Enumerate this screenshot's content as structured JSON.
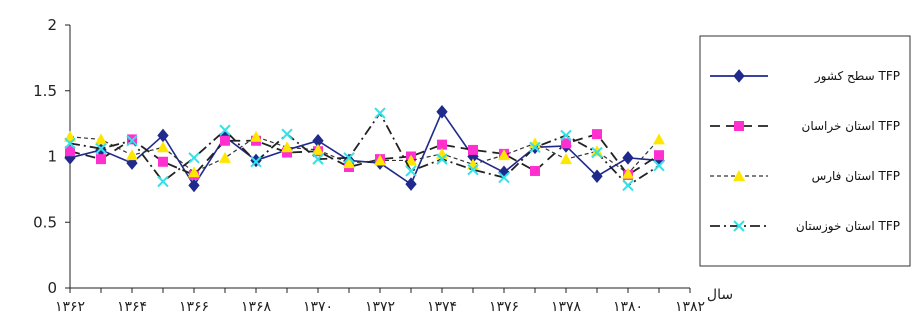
{
  "chart_data": {
    "type": "line",
    "title": "",
    "xlabel": "سال",
    "ylabel": "",
    "ylim": [
      0,
      2
    ],
    "yticks": [
      "0",
      "0.5",
      "1",
      "1.5",
      "2"
    ],
    "x": [
      "۱۳۶۲",
      "۱۳۶۳",
      "۱۳۶۴",
      "۱۳۶۵",
      "۱۳۶۶",
      "۱۳۶۷",
      "۱۳۶۸",
      "۱۳۶۹",
      "۱۳۷۰",
      "۱۳۷۱",
      "۱۳۷۲",
      "۱۳۷۳",
      "۱۳۷۴",
      "۱۳۷۵",
      "۱۳۷۶",
      "۱۳۷۷",
      "۱۳۷۸",
      "۱۳۷۹",
      "۱۳۸۰",
      "۱۳۸۱",
      "۱۳۸۲"
    ],
    "xtick_labels": [
      "۱۳۶۲",
      "۱۳۶۴",
      "۱۳۶۶",
      "۱۳۶۸",
      "۱۳۷۰",
      "۱۳۷۲",
      "۱۳۷۴",
      "۱۳۷۶",
      "۱۳۷۸",
      "۱۳۸۰",
      "۱۳۸۲"
    ],
    "grid": false,
    "legend": "right",
    "series": [
      {
        "name": "سطح کشور TFP",
        "color": "#1f2a8c",
        "dash": "solid",
        "marker": "diamond",
        "values": [
          0.99,
          1.05,
          0.95,
          1.16,
          0.78,
          1.15,
          0.97,
          1.05,
          1.12,
          0.97,
          0.95,
          0.79,
          1.34,
          1.0,
          0.88,
          1.07,
          1.08,
          0.85,
          0.99,
          0.97,
          null
        ]
      },
      {
        "name": "استان خراسان TFP",
        "color": "#ff2fd0",
        "dash": "long",
        "marker": "square",
        "values": [
          1.04,
          0.98,
          1.13,
          0.96,
          0.86,
          1.12,
          1.12,
          1.03,
          1.04,
          0.92,
          0.98,
          1.0,
          1.09,
          1.05,
          1.02,
          0.89,
          1.1,
          1.17,
          0.86,
          1.01,
          null
        ]
      },
      {
        "name": "استان فارس TFP",
        "color": "#ffe600",
        "dash": "short",
        "marker": "triangle",
        "values": [
          1.15,
          1.13,
          1.01,
          1.07,
          0.88,
          0.99,
          1.15,
          1.07,
          1.05,
          0.95,
          0.97,
          0.97,
          1.02,
          0.94,
          1.01,
          1.1,
          0.98,
          1.04,
          0.87,
          1.13,
          null
        ]
      },
      {
        "name": "استان خوزستان TFP",
        "color": "#33e1e8",
        "dash": "dashdot",
        "marker": "x",
        "values": [
          1.1,
          1.06,
          1.12,
          0.81,
          0.99,
          1.2,
          0.96,
          1.17,
          0.98,
          0.99,
          1.33,
          0.89,
          0.98,
          0.9,
          0.84,
          1.07,
          1.16,
          1.03,
          0.78,
          0.93,
          null
        ]
      }
    ]
  }
}
